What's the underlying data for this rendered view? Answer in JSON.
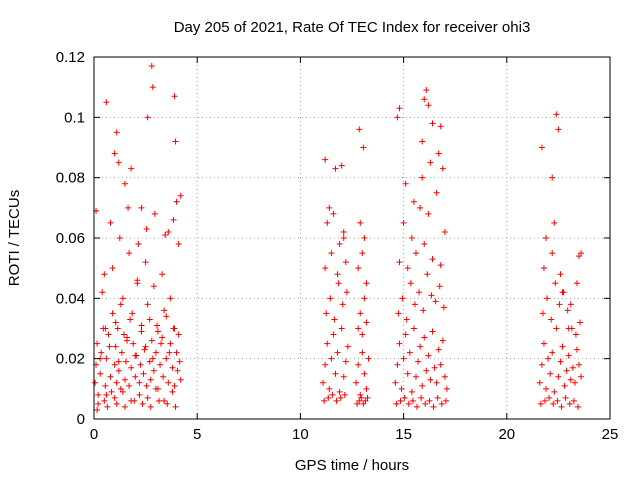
{
  "chart_data": {
    "type": "scatter",
    "title": "Day 205 of 2021, Rate Of TEC Index for receiver ohi3",
    "xlabel": "GPS time / hours",
    "ylabel": "ROTI / TECUs",
    "xlim": [
      0,
      25
    ],
    "ylim": [
      0,
      0.12
    ],
    "x_ticks": [
      "0",
      "5",
      "10",
      "15",
      "20",
      "25"
    ],
    "y_ticks": [
      "0",
      "0.02",
      "0.04",
      "0.06",
      "0.08",
      "0.1",
      "0.12"
    ],
    "grid": true,
    "marker": "plus",
    "color": "#ff0000",
    "series": [
      {
        "x": [
          0.05,
          0.1,
          0.15,
          0.2,
          0.3,
          0.35,
          0.45,
          0.5,
          0.55,
          0.6,
          0.7,
          0.8,
          0.85,
          0.9,
          1.0,
          1.05,
          1.1,
          1.15,
          1.2,
          1.3,
          1.35,
          1.4,
          1.5,
          1.55,
          1.6,
          1.7,
          1.75,
          1.8,
          1.9,
          2.0,
          2.05,
          2.1,
          2.2,
          2.25,
          2.3,
          2.4,
          2.5,
          2.55,
          2.6,
          2.7,
          2.75,
          2.8,
          2.9,
          3.0,
          3.05,
          3.1,
          3.2,
          3.3,
          3.35,
          3.4,
          3.5,
          3.6,
          3.7,
          3.8,
          3.85,
          3.9,
          4.0,
          4.05,
          4.1,
          4.2,
          0.2,
          0.6,
          1.0,
          1.4,
          1.8,
          2.2,
          2.6,
          3.0,
          3.4,
          3.8,
          0.4,
          0.9,
          1.3,
          1.7,
          2.1,
          2.5,
          2.9,
          3.3,
          3.7,
          4.1,
          0.15,
          0.65,
          1.1,
          1.5,
          1.95,
          2.35,
          2.75,
          3.15,
          3.55,
          3.95,
          0.3,
          0.75,
          1.2,
          1.6,
          2.0,
          2.45,
          2.85,
          3.25,
          3.65,
          4.15,
          0.55,
          1.05,
          1.45,
          1.85,
          2.3,
          2.7,
          3.1,
          3.5,
          3.9,
          0.8,
          1.25,
          1.65,
          2.15,
          2.55,
          2.95,
          3.45,
          3.85,
          1.0,
          1.1,
          2.8,
          2.85,
          3.9,
          3.95,
          0.6,
          1.2,
          1.5,
          2.6,
          4.0,
          4.2,
          0.1,
          0.5,
          1.8,
          2.3,
          3.6
        ],
        "y": [
          0.012,
          0.018,
          0.025,
          0.008,
          0.015,
          0.022,
          0.03,
          0.006,
          0.011,
          0.02,
          0.028,
          0.014,
          0.009,
          0.035,
          0.018,
          0.024,
          0.012,
          0.03,
          0.016,
          0.01,
          0.022,
          0.04,
          0.013,
          0.019,
          0.027,
          0.011,
          0.033,
          0.017,
          0.025,
          0.014,
          0.021,
          0.045,
          0.012,
          0.018,
          0.029,
          0.015,
          0.024,
          0.011,
          0.038,
          0.019,
          0.013,
          0.026,
          0.016,
          0.022,
          0.031,
          0.01,
          0.018,
          0.027,
          0.014,
          0.036,
          0.02,
          0.012,
          0.025,
          0.017,
          0.03,
          0.011,
          0.022,
          0.016,
          0.028,
          0.013,
          0.005,
          0.008,
          0.007,
          0.009,
          0.006,
          0.008,
          0.007,
          0.01,
          0.006,
          0.009,
          0.042,
          0.05,
          0.038,
          0.055,
          0.046,
          0.052,
          0.044,
          0.048,
          0.04,
          0.058,
          0.003,
          0.004,
          0.005,
          0.004,
          0.006,
          0.005,
          0.004,
          0.006,
          0.005,
          0.004,
          0.02,
          0.024,
          0.019,
          0.026,
          0.021,
          0.023,
          0.02,
          0.025,
          0.022,
          0.019,
          0.03,
          0.032,
          0.028,
          0.035,
          0.031,
          0.033,
          0.029,
          0.034,
          0.03,
          0.065,
          0.06,
          0.07,
          0.058,
          0.063,
          0.068,
          0.061,
          0.066,
          0.088,
          0.095,
          0.117,
          0.11,
          0.107,
          0.092,
          0.105,
          0.085,
          0.078,
          0.1,
          0.072,
          0.074,
          0.069,
          0.048,
          0.083,
          0.07,
          0.062
        ]
      },
      {
        "x": [
          11.1,
          11.2,
          11.3,
          11.4,
          11.5,
          11.6,
          11.7,
          11.8,
          11.9,
          12.0,
          12.1,
          12.2,
          12.3,
          11.15,
          11.35,
          11.55,
          11.75,
          11.95,
          12.15,
          11.25,
          11.45,
          11.65,
          11.85,
          12.05,
          12.25,
          11.2,
          11.5,
          11.8,
          12.1,
          11.3,
          11.6,
          11.9,
          12.2,
          11.2,
          11.7,
          12.0,
          11.4,
          12.1
        ],
        "y": [
          0.012,
          0.018,
          0.025,
          0.01,
          0.02,
          0.028,
          0.015,
          0.022,
          0.009,
          0.03,
          0.014,
          0.019,
          0.024,
          0.006,
          0.007,
          0.008,
          0.006,
          0.007,
          0.008,
          0.035,
          0.04,
          0.033,
          0.045,
          0.038,
          0.042,
          0.05,
          0.055,
          0.048,
          0.06,
          0.065,
          0.068,
          0.058,
          0.052,
          0.086,
          0.083,
          0.084,
          0.07,
          0.062
        ]
      },
      {
        "x": [
          12.7,
          12.8,
          12.9,
          13.0,
          13.1,
          13.2,
          13.3,
          12.75,
          12.85,
          12.95,
          13.05,
          13.15,
          13.25,
          12.8,
          12.9,
          13.0,
          13.1,
          13.2,
          12.8,
          13.0,
          13.2,
          12.9,
          13.1,
          12.85,
          13.05
        ],
        "y": [
          0.012,
          0.018,
          0.008,
          0.022,
          0.015,
          0.01,
          0.02,
          0.005,
          0.006,
          0.007,
          0.005,
          0.006,
          0.007,
          0.03,
          0.035,
          0.028,
          0.04,
          0.032,
          0.05,
          0.055,
          0.045,
          0.065,
          0.06,
          0.096,
          0.09
        ]
      },
      {
        "x": [
          14.6,
          14.7,
          14.8,
          14.9,
          15.0,
          15.1,
          15.2,
          15.3,
          15.4,
          15.5,
          15.6,
          15.7,
          15.8,
          15.9,
          16.0,
          16.1,
          16.2,
          16.3,
          16.4,
          16.5,
          16.6,
          16.7,
          16.8,
          16.9,
          17.0,
          17.1,
          14.65,
          14.85,
          15.05,
          15.25,
          15.45,
          15.65,
          15.85,
          16.05,
          16.25,
          16.45,
          16.65,
          16.85,
          17.05,
          14.75,
          14.95,
          15.15,
          15.35,
          15.55,
          15.75,
          15.95,
          16.15,
          16.35,
          16.55,
          16.75,
          16.95,
          14.8,
          15.2,
          15.6,
          16.0,
          16.4,
          16.8,
          15.0,
          15.4,
          15.8,
          16.2,
          16.6,
          17.0,
          15.1,
          15.5,
          15.9,
          16.3,
          16.7,
          14.7,
          16.0,
          16.1,
          16.2,
          16.8,
          14.8,
          15.9,
          16.4,
          16.9
        ],
        "y": [
          0.012,
          0.018,
          0.025,
          0.01,
          0.02,
          0.028,
          0.015,
          0.022,
          0.009,
          0.03,
          0.014,
          0.019,
          0.024,
          0.011,
          0.027,
          0.016,
          0.021,
          0.013,
          0.029,
          0.017,
          0.012,
          0.023,
          0.018,
          0.026,
          0.014,
          0.01,
          0.005,
          0.006,
          0.007,
          0.005,
          0.006,
          0.004,
          0.007,
          0.005,
          0.006,
          0.004,
          0.007,
          0.005,
          0.006,
          0.035,
          0.04,
          0.033,
          0.045,
          0.038,
          0.042,
          0.036,
          0.048,
          0.041,
          0.039,
          0.044,
          0.037,
          0.052,
          0.05,
          0.055,
          0.058,
          0.053,
          0.051,
          0.065,
          0.06,
          0.07,
          0.068,
          0.075,
          0.062,
          0.078,
          0.072,
          0.08,
          0.085,
          0.088,
          0.1,
          0.106,
          0.109,
          0.104,
          0.097,
          0.103,
          0.092,
          0.098,
          0.083
        ]
      },
      {
        "x": [
          21.6,
          21.7,
          21.8,
          21.9,
          22.0,
          22.1,
          22.2,
          22.3,
          22.4,
          22.5,
          22.6,
          22.7,
          22.8,
          22.9,
          23.0,
          23.1,
          23.2,
          23.3,
          23.4,
          23.5,
          23.6,
          21.65,
          21.85,
          22.05,
          22.25,
          22.45,
          22.65,
          22.85,
          23.05,
          23.25,
          23.45,
          21.75,
          21.95,
          22.15,
          22.35,
          22.55,
          22.75,
          22.95,
          23.15,
          23.35,
          23.55,
          21.8,
          22.2,
          22.6,
          23.0,
          23.4,
          21.9,
          22.3,
          22.7,
          23.1,
          23.5,
          22.4,
          21.7,
          22.2,
          22.5,
          23.6
        ],
        "y": [
          0.012,
          0.018,
          0.025,
          0.01,
          0.02,
          0.015,
          0.022,
          0.009,
          0.03,
          0.014,
          0.019,
          0.024,
          0.011,
          0.016,
          0.021,
          0.013,
          0.017,
          0.012,
          0.023,
          0.018,
          0.014,
          0.005,
          0.006,
          0.007,
          0.005,
          0.006,
          0.004,
          0.007,
          0.005,
          0.006,
          0.004,
          0.035,
          0.04,
          0.033,
          0.045,
          0.038,
          0.042,
          0.036,
          0.03,
          0.028,
          0.032,
          0.05,
          0.055,
          0.048,
          0.03,
          0.045,
          0.06,
          0.065,
          0.042,
          0.038,
          0.054,
          0.101,
          0.09,
          0.08,
          0.096,
          0.055
        ]
      }
    ]
  }
}
